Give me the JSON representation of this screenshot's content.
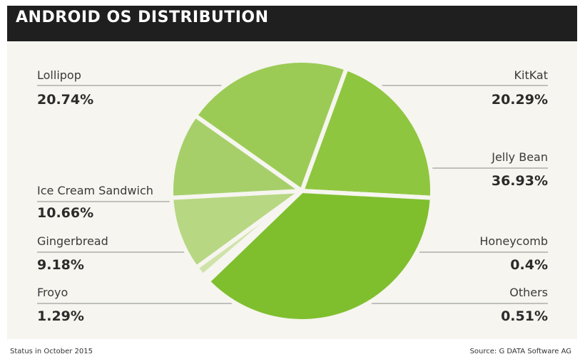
{
  "header": {
    "title": "ANDROID OS DISTRIBUTION"
  },
  "footer": {
    "status": "Status in October 2015",
    "source": "Source: G DATA Software AG"
  },
  "chart_data": {
    "type": "pie",
    "title": "ANDROID OS DISTRIBUTION",
    "slices": [
      {
        "label": "KitKat",
        "value": 20.29,
        "display": "20.29%",
        "color": "#8fc63f"
      },
      {
        "label": "Jelly Bean",
        "value": 36.93,
        "display": "36.93%",
        "color": "#7fbf2e"
      },
      {
        "label": "Honeycomb",
        "value": 0.4,
        "display": "0.4%",
        "color": "#c8dfa0"
      },
      {
        "label": "Others",
        "value": 0.51,
        "display": "0.51%",
        "color": "#d6e7b6"
      },
      {
        "label": "Froyo",
        "value": 1.29,
        "display": "1.29%",
        "color": "#cfe3a9"
      },
      {
        "label": "Gingerbread",
        "value": 9.18,
        "display": "9.18%",
        "color": "#b7d782"
      },
      {
        "label": "Ice Cream Sandwich",
        "value": 10.66,
        "display": "10.66%",
        "color": "#a6cf6a"
      },
      {
        "label": "Lollipop",
        "value": 20.74,
        "display": "20.74%",
        "color": "#9bcb55"
      }
    ]
  }
}
